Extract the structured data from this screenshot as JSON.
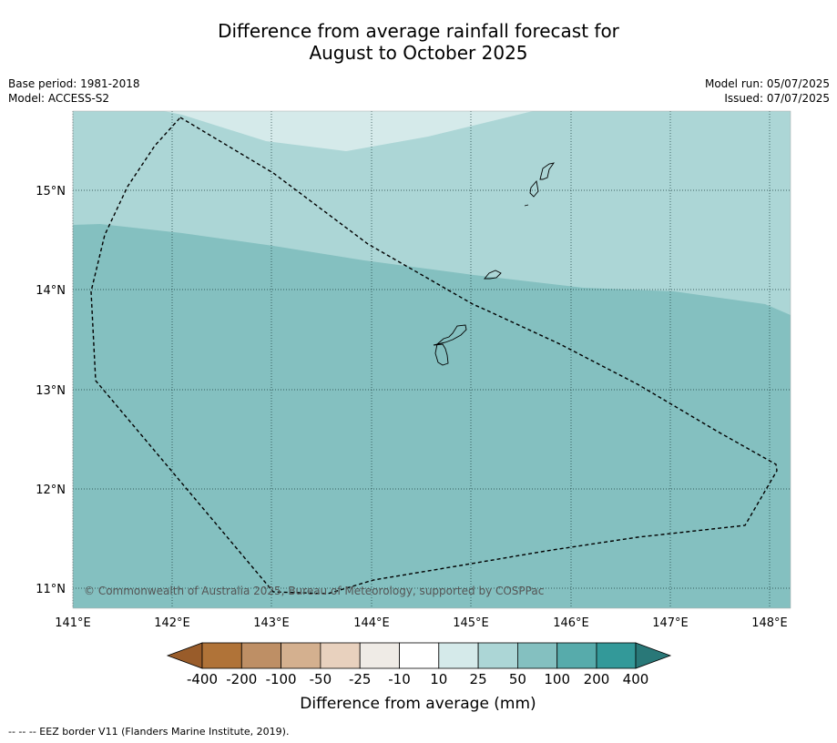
{
  "header": {
    "title_line1": "Difference from average rainfall forecast for",
    "title_line2": "August to October 2025",
    "base_period": "Base period: 1981-2018",
    "model": "Model: ACCESS-S2",
    "model_run": "Model run: 05/07/2025",
    "issued": "Issued: 07/07/2025"
  },
  "map": {
    "lon_ticks": [
      "141°E",
      "142°E",
      "143°E",
      "144°E",
      "145°E",
      "146°E",
      "147°E",
      "148°E"
    ],
    "lat_ticks": [
      "15°N",
      "14°N",
      "13°N",
      "12°N",
      "11°N"
    ],
    "copyright": "© Commonwealth of Australia 2025, Bureau of Meteorology, supported by COSPPac",
    "colors": {
      "category_10_25": "#d5eaea",
      "category_25_50": "#acd6d6",
      "category_50_100": "#84c0c0"
    }
  },
  "colorbar": {
    "title": "Difference from average (mm)",
    "labels": [
      "-400",
      "-200",
      "-100",
      "-50",
      "-25",
      "-10",
      "10",
      "25",
      "50",
      "100",
      "200",
      "400"
    ],
    "colors": [
      "#995c2a",
      "#b07338",
      "#be8f65",
      "#d4b08f",
      "#e8d1be",
      "#efebe6",
      "#ffffff",
      "#d5eaea",
      "#acd6d6",
      "#84c0c0",
      "#57abab",
      "#339999",
      "#297878"
    ]
  },
  "footer": {
    "legend": "--  --  -- EEZ border V11 (Flanders Marine Institute, 2019)."
  }
}
